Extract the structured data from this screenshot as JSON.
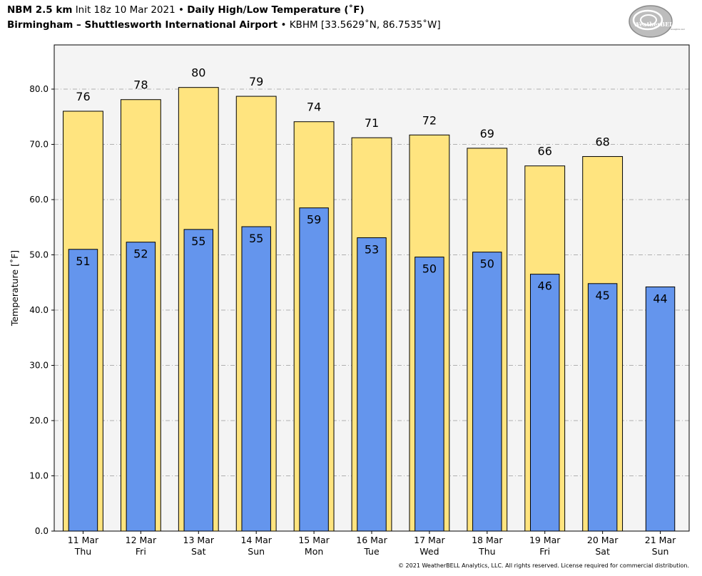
{
  "header": {
    "model": "NBM 2.5 km",
    "init": "Init 18z 10 Mar 2021",
    "sep1": "•",
    "product": "Daily High/Low Temperature (˚F)",
    "station_name": "Birmingham – Shuttlesworth International Airport",
    "sep2": "•",
    "station_id": "KBHM [33.5629˚N, 86.7535˚W]"
  },
  "logo": {
    "text_main": "WeatherBELL",
    "text_sub": "Analytics LLC"
  },
  "copyright": "© 2021 WeatherBELL Analytics, LLC. All rights reserved. License required for commercial distribution.",
  "colors": {
    "high_fill": "#ffe47f",
    "low_fill": "#6495ed",
    "plot_bg": "#f4f4f4",
    "grid": "#b0b0b0"
  },
  "chart_data": {
    "type": "bar",
    "ylabel": "Temperature [˚F]",
    "ylim": [
      0,
      88
    ],
    "yticks": [
      "0.0",
      "10.0",
      "20.0",
      "30.0",
      "40.0",
      "50.0",
      "60.0",
      "70.0",
      "80.0"
    ],
    "grid": true,
    "categories": [
      {
        "date": "11 Mar",
        "day": "Thu"
      },
      {
        "date": "12 Mar",
        "day": "Fri"
      },
      {
        "date": "13 Mar",
        "day": "Sat"
      },
      {
        "date": "14 Mar",
        "day": "Sun"
      },
      {
        "date": "15 Mar",
        "day": "Mon"
      },
      {
        "date": "16 Mar",
        "day": "Tue"
      },
      {
        "date": "17 Mar",
        "day": "Wed"
      },
      {
        "date": "18 Mar",
        "day": "Thu"
      },
      {
        "date": "19 Mar",
        "day": "Fri"
      },
      {
        "date": "20 Mar",
        "day": "Sat"
      },
      {
        "date": "21 Mar",
        "day": "Sun"
      }
    ],
    "series": [
      {
        "name": "High",
        "values": [
          76.0,
          78.1,
          80.3,
          78.7,
          74.1,
          71.2,
          71.7,
          69.3,
          66.1,
          67.8,
          null
        ],
        "labels": [
          "76",
          "78",
          "80",
          "79",
          "74",
          "71",
          "72",
          "69",
          "66",
          "68",
          ""
        ]
      },
      {
        "name": "Low",
        "values": [
          51.0,
          52.3,
          54.6,
          55.1,
          58.5,
          53.1,
          49.6,
          50.5,
          46.5,
          44.8,
          44.2
        ],
        "labels": [
          "51",
          "52",
          "55",
          "55",
          "59",
          "53",
          "50",
          "50",
          "46",
          "45",
          "44"
        ]
      }
    ]
  }
}
